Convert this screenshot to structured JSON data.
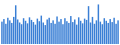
{
  "chart_data": {
    "type": "bar",
    "categories": [
      null,
      null,
      null,
      null,
      null,
      null,
      null,
      null,
      null,
      null,
      null,
      null,
      null,
      null,
      null,
      null,
      null,
      null,
      null,
      null,
      null,
      null,
      null,
      null,
      null,
      null,
      null,
      null,
      null,
      null,
      null,
      null,
      null,
      null,
      null,
      null,
      null,
      null,
      null,
      null,
      null,
      null,
      null,
      null,
      null,
      null,
      null,
      null,
      null,
      null,
      null,
      null,
      null,
      null,
      null,
      null,
      null,
      null,
      null,
      null
    ],
    "values": [
      52,
      58,
      47,
      61,
      55,
      49,
      63,
      90,
      57,
      50,
      46,
      60,
      54,
      48,
      62,
      56,
      51,
      45,
      59,
      53,
      66,
      50,
      44,
      57,
      61,
      49,
      55,
      47,
      64,
      52,
      58,
      46,
      60,
      53,
      49,
      65,
      51,
      57,
      45,
      62,
      54,
      48,
      59,
      56,
      88,
      50,
      63,
      47,
      55,
      92,
      52,
      46,
      60,
      54,
      49,
      58,
      51,
      61,
      47,
      55
    ],
    "color": "#3a7fd5",
    "ylim": [
      0,
      100
    ],
    "tick_labels": false
  }
}
